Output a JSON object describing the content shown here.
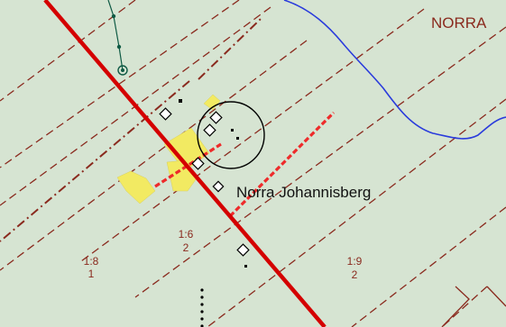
{
  "map": {
    "colors": {
      "background": "#d6e4d2",
      "road": "#d40000",
      "property_line": "#8a2a1e",
      "parcel_text": "#8a2a1e",
      "water": "#2a3bdc",
      "building_area": "#f2ea62",
      "trail": "#ee2a2a",
      "place_label": "#111111",
      "power_line": "#0f5a44"
    },
    "labels": {
      "region": "NORRA",
      "place": "Norra Johannisberg"
    },
    "parcels": [
      {
        "number": "1:8",
        "sub": "1"
      },
      {
        "number": "1:6",
        "sub": "2"
      },
      {
        "number": "1:9",
        "sub": "2"
      }
    ]
  }
}
